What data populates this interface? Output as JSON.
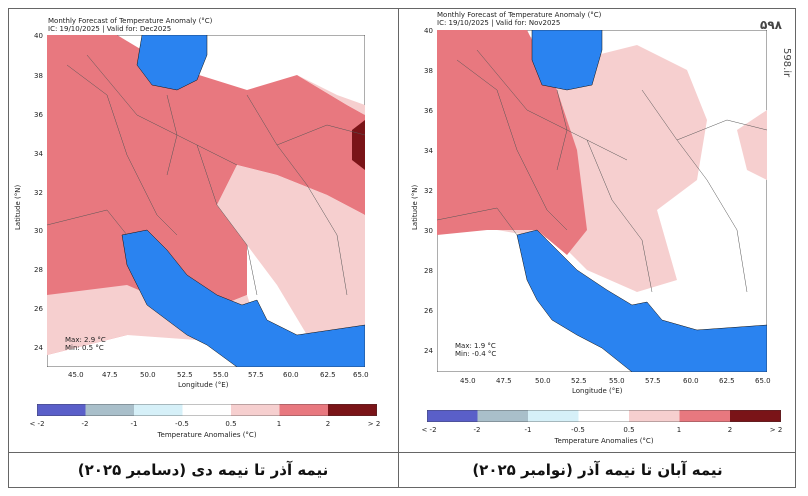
{
  "colors": {
    "cb": [
      "#5a5fc9",
      "#a9bfca",
      "#d6f0f8",
      "#ffffff",
      "#f6cfcf",
      "#e8787f",
      "#7a1418"
    ],
    "sea": "#2a83f0",
    "warm1": "#f6cfcf",
    "warm2": "#e8787f",
    "warm3": "#7a1418"
  },
  "captions": {
    "left": "نیمه آذر تا نیمه دی (دسامبر ۲۰۲۵)",
    "right": "نیمه آبان تا نیمه آذر (نوامبر ۲۰۲۵)"
  },
  "logo": {
    "text": "۵۹۸",
    "site": "598.ir"
  },
  "maps": [
    {
      "title": "Monthly Forecast of Temperature Anomaly (°C)",
      "subtitle": "IC: 19/10/2025 | Valid for: Dec2025",
      "ylabel": "Latitude (°N)",
      "xlabel": "Longitude (°E)",
      "xticks": [
        "45.0",
        "47.5",
        "50.0",
        "52.5",
        "55.0",
        "57.5",
        "60.0",
        "62.5",
        "65.0"
      ],
      "yticks": [
        "40",
        "38",
        "36",
        "34",
        "32",
        "30",
        "28",
        "26",
        "24"
      ],
      "max": "Max: 2.9 °C",
      "min": "Min: 0.5 °C",
      "colorbar_label": "Temperature Anomalies (°C)",
      "colorbar_ticks": [
        "< -2",
        "-2",
        "-1",
        "-0.5",
        "0.5",
        "1",
        "2",
        "> 2"
      ]
    },
    {
      "title": "Monthly Forecast of Temperature Anomaly (°C)",
      "subtitle": "IC: 19/10/2025 | Valid for: Nov2025",
      "ylabel": "Latitude (°N)",
      "xlabel": "Longitude (°E)",
      "xticks": [
        "45.0",
        "47.5",
        "50.0",
        "52.5",
        "55.0",
        "57.5",
        "60.0",
        "62.5",
        "65.0"
      ],
      "yticks": [
        "40",
        "38",
        "36",
        "34",
        "32",
        "30",
        "28",
        "26",
        "24"
      ],
      "max": "Max: 1.9 °C",
      "min": "Min: -0.4 °C",
      "colorbar_label": "Temperature Anomalies (°C)",
      "colorbar_ticks": [
        "< -2",
        "-2",
        "-1",
        "-0.5",
        "0.5",
        "1",
        "2",
        "> 2"
      ]
    }
  ]
}
